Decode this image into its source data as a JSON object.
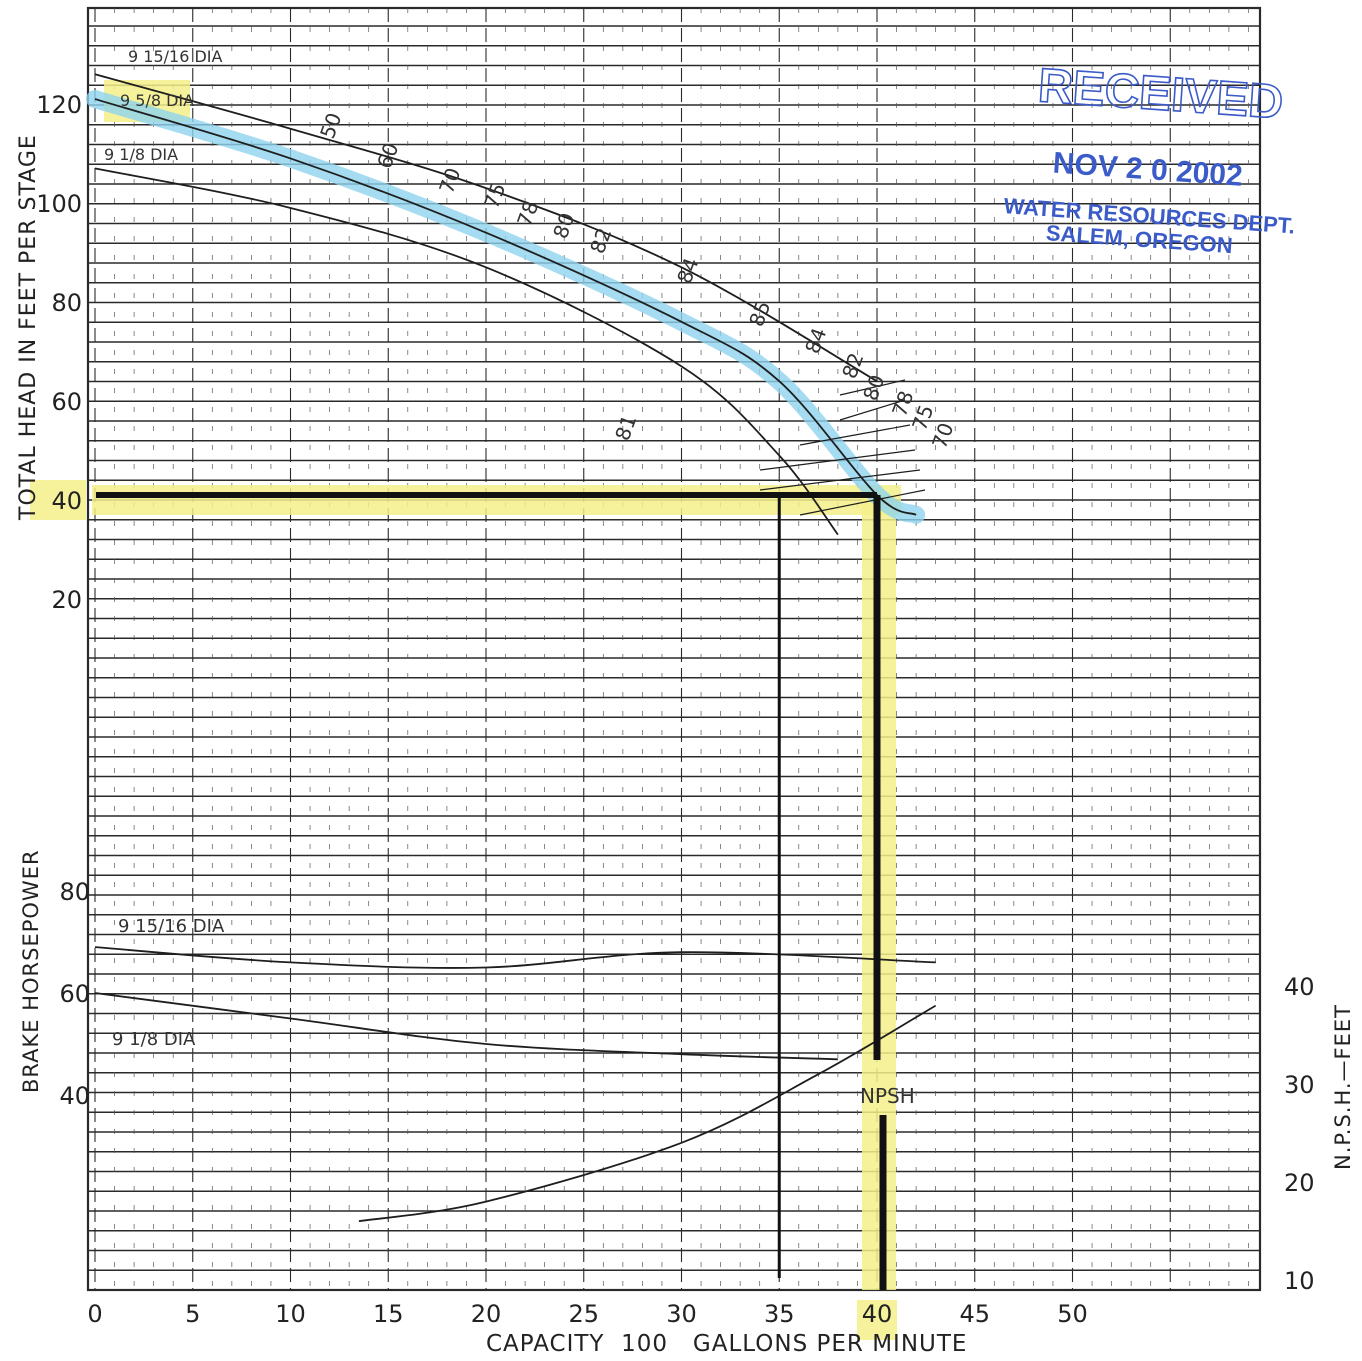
{
  "chart_data": {
    "type": "line",
    "x_axis": {
      "label": "CAPACITY  100   GALLONS PER MINUTE",
      "range": [
        0,
        55
      ],
      "ticks": [
        "0",
        "5",
        "10",
        "15",
        "20",
        "25",
        "30",
        "35",
        "40",
        "45",
        "50"
      ]
    },
    "head_axis": {
      "label": "TOTAL HEAD IN FEET PER STAGE",
      "range": [
        20,
        125
      ],
      "ticks": [
        "20",
        "40",
        "60",
        "80",
        "100",
        "120"
      ]
    },
    "bhp_axis": {
      "label": "BRAKE HORSEPOWER",
      "range": [
        30,
        85
      ],
      "ticks": [
        "40",
        "60",
        "80"
      ]
    },
    "npsh_axis": {
      "label": "N.P.S.H.—FEET",
      "range": [
        10,
        40
      ],
      "ticks": [
        "10",
        "20",
        "30",
        "40"
      ]
    },
    "head_curves": [
      {
        "name": "9 15/16 DIA",
        "points": [
          [
            0,
            126
          ],
          [
            10,
            115
          ],
          [
            20,
            103
          ],
          [
            30,
            87
          ],
          [
            40,
            64
          ]
        ]
      },
      {
        "name": "9 5/8 DIA",
        "points": [
          [
            0,
            121
          ],
          [
            10,
            109
          ],
          [
            20,
            94
          ],
          [
            30,
            76
          ],
          [
            35,
            64
          ],
          [
            40,
            41
          ],
          [
            42,
            37
          ]
        ]
      },
      {
        "name": "9 1/8 DIA",
        "points": [
          [
            0,
            107
          ],
          [
            10,
            99
          ],
          [
            20,
            87
          ],
          [
            30,
            67
          ],
          [
            35,
            49
          ],
          [
            38,
            33
          ]
        ]
      }
    ],
    "efficiency_labels": [
      "50",
      "60",
      "70",
      "75",
      "78",
      "80",
      "82",
      "84",
      "85",
      "84",
      "82",
      "80",
      "78",
      "75",
      "70",
      "81"
    ],
    "bhp_curves": [
      {
        "name": "9 15/16 DIA",
        "points": [
          [
            0,
            69
          ],
          [
            10,
            66
          ],
          [
            20,
            65
          ],
          [
            30,
            68
          ],
          [
            43,
            66
          ]
        ]
      },
      {
        "name": "9 1/8 DIA",
        "points": [
          [
            0,
            60
          ],
          [
            10,
            55
          ],
          [
            20,
            50
          ],
          [
            30,
            48
          ],
          [
            38,
            47
          ]
        ]
      }
    ],
    "npsh_curve": {
      "name": "NPSH",
      "points": [
        [
          13.5,
          16
        ],
        [
          20,
          18
        ],
        [
          30,
          24
        ],
        [
          37,
          31
        ],
        [
          43,
          38
        ]
      ]
    },
    "operating_point": {
      "capacity": 40,
      "head": 41
    },
    "highlighted_head_value": 40,
    "highlighted_capacity_value": 40
  },
  "stamp": {
    "title": "RECEIVED",
    "date": "NOV 2 0 2002",
    "line1": "WATER RESOURCES DEPT.",
    "line2": "SALEM, OREGON"
  },
  "colors": {
    "grid": "#2a2a2a",
    "curve": "#1e1e1e",
    "highlight_yellow": "#f4f08a",
    "highlight_blue": "#8fd3ee",
    "stamp_blue": "#3b5bc9"
  }
}
